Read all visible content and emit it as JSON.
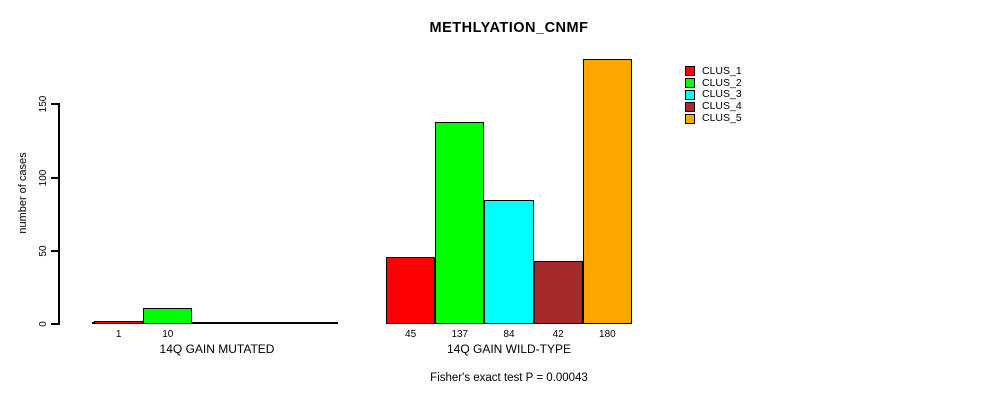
{
  "chart": {
    "title": "METHLYATION_CNMF",
    "ylabel": "number of cases",
    "footer": "Fisher's exact test P = 0.00043"
  },
  "chart_data": {
    "type": "bar",
    "title": "METHLYATION_CNMF",
    "xlabel": "",
    "ylabel": "number of cases",
    "yticks": [
      0,
      50,
      100,
      150
    ],
    "ylim": [
      0,
      180
    ],
    "grid": false,
    "legend_position": "right",
    "legend": [
      {
        "label": "CLUS_1",
        "color": "#FF0000"
      },
      {
        "label": "CLUS_2",
        "color": "#00FF00"
      },
      {
        "label": "CLUS_3",
        "color": "#00FFFF"
      },
      {
        "label": "CLUS_4",
        "color": "#A52A2A"
      },
      {
        "label": "CLUS_5",
        "color": "#FFA500"
      }
    ],
    "groups": [
      {
        "label": "14Q GAIN MUTATED",
        "bars": [
          {
            "cluster": "CLUS_1",
            "value": 1
          },
          {
            "cluster": "CLUS_2",
            "value": 10
          }
        ]
      },
      {
        "label": "14Q GAIN WILD-TYPE",
        "bars": [
          {
            "cluster": "CLUS_1",
            "value": 45
          },
          {
            "cluster": "CLUS_2",
            "value": 137
          },
          {
            "cluster": "CLUS_3",
            "value": 84
          },
          {
            "cluster": "CLUS_4",
            "value": 42
          },
          {
            "cluster": "CLUS_5",
            "value": 180
          }
        ]
      }
    ],
    "annotation": "Fisher's exact test P = 0.00043"
  }
}
